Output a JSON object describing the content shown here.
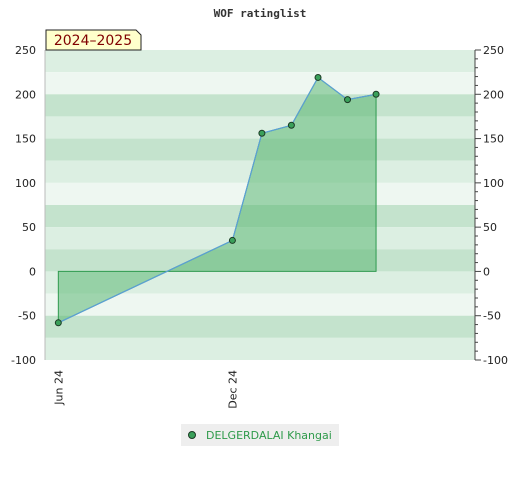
{
  "colors": {
    "band_light": "#eef7f1",
    "band_mid": "#dcefe2",
    "band_dark": "#c4e3cd",
    "fill": "#5cb874",
    "line": "#5b9fd6",
    "marker": "#3aa05a",
    "period_bg": "#ffffcc",
    "period_text": "#800000",
    "legend_text": "#2e9a4a"
  },
  "chart_data": {
    "type": "area",
    "title": "WOF ratinglist",
    "period_label": "2024–2025",
    "xlabel": "",
    "ylabel": "",
    "ylim": [
      -100,
      250
    ],
    "yticks": [
      -100,
      -50,
      0,
      50,
      100,
      150,
      200,
      250
    ],
    "xlim": [
      "2024-05-18",
      "2025-08-13"
    ],
    "xticks": [
      {
        "label": "Jun 24",
        "date": "2024-06-01"
      },
      {
        "label": "Dec 24",
        "date": "2024-12-01"
      }
    ],
    "series": [
      {
        "name": "DELGERDALAI Khangai",
        "points": [
          {
            "x": "2024-06-01",
            "y": -58
          },
          {
            "x": "2024-12-01",
            "y": 35
          },
          {
            "x": "2025-01-01",
            "y": 156
          },
          {
            "x": "2025-02-01",
            "y": 165
          },
          {
            "x": "2025-03-01",
            "y": 219
          },
          {
            "x": "2025-04-01",
            "y": 194
          },
          {
            "x": "2025-05-01",
            "y": 200
          }
        ]
      }
    ],
    "grid": true,
    "legend": "bottom-center"
  }
}
